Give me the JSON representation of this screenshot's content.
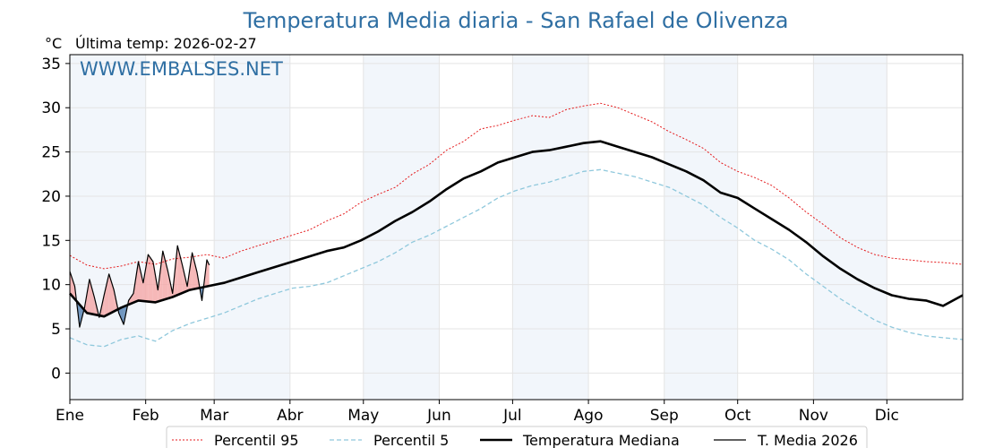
{
  "chart_data": {
    "type": "line",
    "title": "Temperatura Media diaria - San Rafael de Olivenza",
    "unit_label": "°C",
    "last_temp_label": "Última temp: 2026-02-27",
    "watermark": "WWW.EMBALSES.NET",
    "xlim": [
      1,
      366
    ],
    "ylim": [
      -3,
      36
    ],
    "yticks": [
      0,
      5,
      10,
      15,
      20,
      25,
      30,
      35
    ],
    "months": [
      {
        "label": "Ene",
        "day": 1
      },
      {
        "label": "Feb",
        "day": 32
      },
      {
        "label": "Mar",
        "day": 60
      },
      {
        "label": "Abr",
        "day": 91
      },
      {
        "label": "May",
        "day": 121
      },
      {
        "label": "Jun",
        "day": 152
      },
      {
        "label": "Jul",
        "day": 182
      },
      {
        "label": "Ago",
        "day": 213
      },
      {
        "label": "Sep",
        "day": 244
      },
      {
        "label": "Oct",
        "day": 274
      },
      {
        "label": "Nov",
        "day": 305
      },
      {
        "label": "Dic",
        "day": 335
      }
    ],
    "shaded_month_bands": [
      [
        1,
        32
      ],
      [
        60,
        91
      ],
      [
        121,
        152
      ],
      [
        182,
        213
      ],
      [
        244,
        274
      ],
      [
        305,
        335
      ]
    ],
    "grid": true,
    "legend_position": "bottom",
    "series": [
      {
        "name": "Percentil 95",
        "color": "#e41a1c",
        "style": "dotted",
        "x": [
          1,
          8,
          15,
          22,
          29,
          36,
          43,
          50,
          57,
          64,
          71,
          78,
          85,
          92,
          99,
          106,
          113,
          120,
          127,
          134,
          141,
          148,
          155,
          162,
          169,
          176,
          183,
          190,
          197,
          204,
          211,
          218,
          225,
          232,
          239,
          246,
          253,
          260,
          267,
          274,
          281,
          288,
          295,
          302,
          309,
          316,
          323,
          330,
          337,
          344,
          351,
          358,
          366
        ],
        "y": [
          13.3,
          12.2,
          11.8,
          12.1,
          12.6,
          12.3,
          12.9,
          13.1,
          13.4,
          13.0,
          13.8,
          14.4,
          15.0,
          15.6,
          16.2,
          17.2,
          18.0,
          19.3,
          20.2,
          21.0,
          22.5,
          23.6,
          25.2,
          26.2,
          27.6,
          28.0,
          28.6,
          29.1,
          28.9,
          29.8,
          30.2,
          30.5,
          30.0,
          29.2,
          28.4,
          27.3,
          26.4,
          25.4,
          23.8,
          22.8,
          22.1,
          21.2,
          19.8,
          18.2,
          16.8,
          15.3,
          14.2,
          13.4,
          13.0,
          12.8,
          12.6,
          12.5,
          12.3
        ]
      },
      {
        "name": "Percentil 5",
        "color": "#8fc8dc",
        "style": "dashed",
        "x": [
          1,
          8,
          15,
          22,
          29,
          36,
          43,
          50,
          57,
          64,
          71,
          78,
          85,
          92,
          99,
          106,
          113,
          120,
          127,
          134,
          141,
          148,
          155,
          162,
          169,
          176,
          183,
          190,
          197,
          204,
          211,
          218,
          225,
          232,
          239,
          246,
          253,
          260,
          267,
          274,
          281,
          288,
          295,
          302,
          309,
          316,
          323,
          330,
          337,
          344,
          351,
          358,
          366
        ],
        "y": [
          4.0,
          3.2,
          3.0,
          3.8,
          4.2,
          3.6,
          4.8,
          5.6,
          6.2,
          6.8,
          7.6,
          8.4,
          9.0,
          9.6,
          9.8,
          10.2,
          11.0,
          11.8,
          12.6,
          13.6,
          14.8,
          15.6,
          16.6,
          17.6,
          18.6,
          19.8,
          20.6,
          21.2,
          21.6,
          22.2,
          22.8,
          23.0,
          22.6,
          22.2,
          21.6,
          21.0,
          20.0,
          19.0,
          17.6,
          16.4,
          15.0,
          14.0,
          12.8,
          11.2,
          9.8,
          8.4,
          7.2,
          6.0,
          5.2,
          4.6,
          4.2,
          4.0,
          3.8
        ]
      },
      {
        "name": "Temperatura Mediana",
        "color": "#000000",
        "style": "thick",
        "x": [
          1,
          8,
          15,
          22,
          29,
          36,
          43,
          50,
          57,
          64,
          71,
          78,
          85,
          92,
          99,
          106,
          113,
          120,
          127,
          134,
          141,
          148,
          155,
          162,
          169,
          176,
          183,
          190,
          197,
          204,
          211,
          218,
          225,
          232,
          239,
          246,
          253,
          260,
          267,
          274,
          281,
          288,
          295,
          302,
          309,
          316,
          323,
          330,
          337,
          344,
          351,
          358,
          366
        ],
        "y": [
          9.0,
          6.8,
          6.4,
          7.4,
          8.2,
          8.0,
          8.6,
          9.4,
          9.8,
          10.2,
          10.8,
          11.4,
          12.0,
          12.6,
          13.2,
          13.8,
          14.2,
          15.0,
          16.0,
          17.2,
          18.2,
          19.4,
          20.8,
          22.0,
          22.8,
          23.8,
          24.4,
          25.0,
          25.2,
          25.6,
          26.0,
          26.2,
          25.6,
          25.0,
          24.4,
          23.6,
          22.8,
          21.8,
          20.4,
          19.8,
          18.6,
          17.4,
          16.2,
          14.8,
          13.2,
          11.8,
          10.6,
          9.6,
          8.8,
          8.4,
          8.2,
          7.6,
          8.8
        ]
      },
      {
        "name": "T. Media 2026",
        "color": "#000000",
        "style": "thin",
        "x": [
          1,
          3,
          5,
          7,
          9,
          11,
          13,
          15,
          17,
          19,
          21,
          23,
          25,
          27,
          29,
          31,
          33,
          35,
          37,
          39,
          41,
          43,
          45,
          47,
          49,
          51,
          53,
          55,
          57,
          58
        ],
        "y": [
          11.5,
          9.8,
          5.2,
          7.4,
          10.6,
          8.6,
          6.3,
          8.8,
          11.2,
          9.4,
          6.8,
          5.5,
          8.2,
          9.0,
          12.6,
          10.2,
          13.4,
          12.6,
          9.4,
          13.8,
          11.6,
          9.0,
          14.4,
          12.2,
          9.8,
          13.6,
          11.4,
          8.2,
          12.8,
          12.2
        ]
      }
    ]
  }
}
